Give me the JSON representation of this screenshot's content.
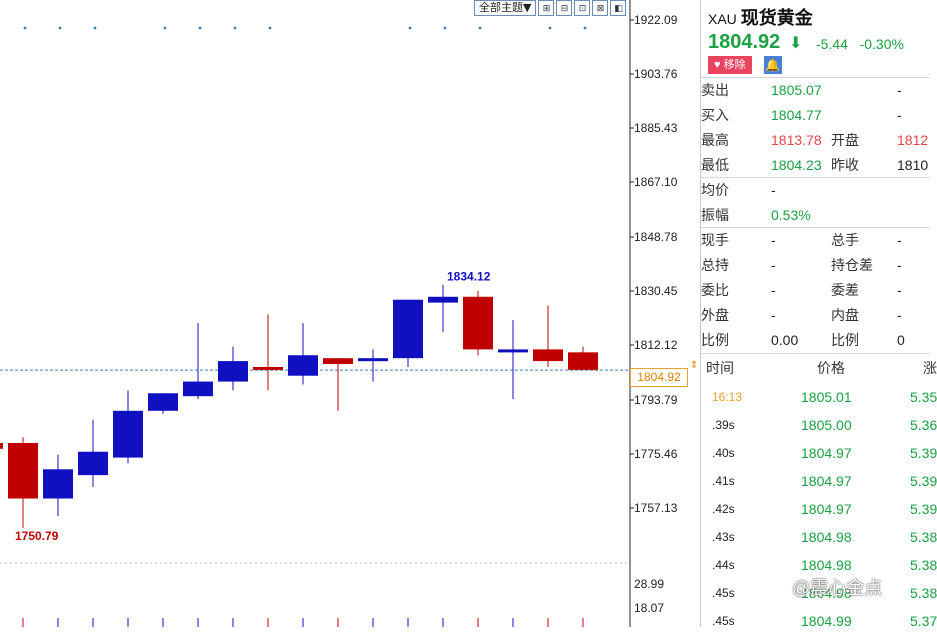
{
  "toolbar": {
    "theme_label": "全部主题▼",
    "buttons": [
      "⊞",
      "⊟",
      "⊡",
      "⊠",
      "◧"
    ]
  },
  "price_axis": {
    "labels": [
      "1922.09",
      "1903.76",
      "1885.43",
      "1867.10",
      "1848.78",
      "1830.45",
      "1812.12",
      "1793.79",
      "1775.46",
      "1757.13"
    ],
    "current_price_label": "1804.92"
  },
  "volume_axis": {
    "labels": [
      "28.99",
      "18.07"
    ]
  },
  "chart_data": {
    "type": "candlestick",
    "ylim": [
      1741,
      1925
    ],
    "current_price": 1804.92,
    "candles": [
      {
        "o": 1780.0,
        "h": 1781.0,
        "l": 1773.0,
        "c": 1778.0
      },
      {
        "o": 1780.0,
        "h": 1782.0,
        "l": 1751.0,
        "c": 1761.0
      },
      {
        "o": 1761.0,
        "h": 1776.0,
        "l": 1755.0,
        "c": 1771.0
      },
      {
        "o": 1769.0,
        "h": 1788.0,
        "l": 1765.0,
        "c": 1777.0
      },
      {
        "o": 1775.0,
        "h": 1798.0,
        "l": 1773.0,
        "c": 1791.0
      },
      {
        "o": 1791.0,
        "h": 1797.0,
        "l": 1790.0,
        "c": 1797.0
      },
      {
        "o": 1796.0,
        "h": 1821.0,
        "l": 1795.0,
        "c": 1801.0
      },
      {
        "o": 1801.0,
        "h": 1813.0,
        "l": 1798.0,
        "c": 1808.0
      },
      {
        "o": 1806.0,
        "h": 1824.0,
        "l": 1798.0,
        "c": 1805.0
      },
      {
        "o": 1803.0,
        "h": 1821.0,
        "l": 1800.0,
        "c": 1810.0
      },
      {
        "o": 1809.0,
        "h": 1809.0,
        "l": 1791.0,
        "c": 1807.0
      },
      {
        "o": 1808.0,
        "h": 1812.0,
        "l": 1801.0,
        "c": 1809.0
      },
      {
        "o": 1809.0,
        "h": 1829.0,
        "l": 1806.0,
        "c": 1829.0
      },
      {
        "o": 1828.0,
        "h": 1834.12,
        "l": 1818.0,
        "c": 1830.0
      },
      {
        "o": 1830.0,
        "h": 1832.0,
        "l": 1810.0,
        "c": 1812.0
      },
      {
        "o": 1811.0,
        "h": 1822.0,
        "l": 1795.0,
        "c": 1812.0
      },
      {
        "o": 1812.0,
        "h": 1827.0,
        "l": 1806.0,
        "c": 1808.0
      },
      {
        "o": 1811.0,
        "h": 1813.0,
        "l": 1805.0,
        "c": 1805.0
      }
    ],
    "annotations": [
      {
        "text": "1834.12",
        "candle": 13,
        "at": "high"
      },
      {
        "text": "1750.79",
        "candle": 1,
        "at": "low"
      }
    ],
    "colors": {
      "up": "#1010c0",
      "down": "#c00000",
      "axis": "#222222",
      "current_line": "#3d7fb8"
    }
  },
  "quote": {
    "code": "XAU",
    "name": "现货黄金",
    "price": "1804.92",
    "change": "-5.44",
    "change_pct": "-0.30%",
    "remove_label": "移除",
    "bell_icon": "bell-icon",
    "rows": [
      {
        "l1": "卖出",
        "v1": "1805.07",
        "c1": "green",
        "l2": "",
        "v2": "-",
        "c2": "dark"
      },
      {
        "l1": "买入",
        "v1": "1804.77",
        "c1": "green",
        "l2": "",
        "v2": "-",
        "c2": "dark"
      },
      {
        "l1": "最高",
        "v1": "1813.78",
        "c1": "red",
        "l2": "开盘",
        "v2": "1812",
        "c2": "red"
      },
      {
        "l1": "最低",
        "v1": "1804.23",
        "c1": "green",
        "l2": "昨收",
        "v2": "1810",
        "c2": "dark"
      },
      {
        "l1": "均价",
        "v1": "-",
        "c1": "dark",
        "l2": "",
        "v2": "",
        "c2": "dark"
      },
      {
        "l1": "振幅",
        "v1": "0.53%",
        "c1": "green",
        "l2": "",
        "v2": "",
        "c2": "dark"
      },
      {
        "l1": "现手",
        "v1": "-",
        "c1": "dark",
        "l2": "总手",
        "v2": "-",
        "c2": "dark"
      },
      {
        "l1": "总持",
        "v1": "-",
        "c1": "dark",
        "l2": "持仓差",
        "v2": "-",
        "c2": "dark"
      },
      {
        "l1": "委比",
        "v1": "-",
        "c1": "dark",
        "l2": "委差",
        "v2": "-",
        "c2": "dark"
      },
      {
        "l1": "外盘",
        "v1": "-",
        "c1": "dark",
        "l2": "内盘",
        "v2": "-",
        "c2": "dark"
      },
      {
        "l1": "比例",
        "v1": "0.00",
        "c1": "dark",
        "l2": "比例",
        "v2": "0",
        "c2": "dark"
      }
    ],
    "ticks_header": {
      "time": "时间",
      "price": "价格",
      "vol": "涨"
    },
    "ticks": [
      {
        "time": "16:13",
        "price": "1805.01",
        "vol": "5.35",
        "time_color": "#e8a030"
      },
      {
        "time": ".39s",
        "price": "1805.00",
        "vol": "5.36",
        "time_color": "#222222"
      },
      {
        "time": ".40s",
        "price": "1804.97",
        "vol": "5.39",
        "time_color": "#222222"
      },
      {
        "time": ".41s",
        "price": "1804.97",
        "vol": "5.39",
        "time_color": "#222222"
      },
      {
        "time": ".42s",
        "price": "1804.97",
        "vol": "5.39",
        "time_color": "#222222"
      },
      {
        "time": ".43s",
        "price": "1804.98",
        "vol": "5.38",
        "time_color": "#222222"
      },
      {
        "time": ".44s",
        "price": "1804.98",
        "vol": "5.38",
        "time_color": "#222222"
      },
      {
        "time": ".45s",
        "price": "1804.98",
        "vol": "5.38",
        "time_color": "#222222"
      },
      {
        "time": ".45s",
        "price": "1804.99",
        "vol": "5.37",
        "time_color": "#222222"
      }
    ]
  },
  "watermark": "@震心金点"
}
